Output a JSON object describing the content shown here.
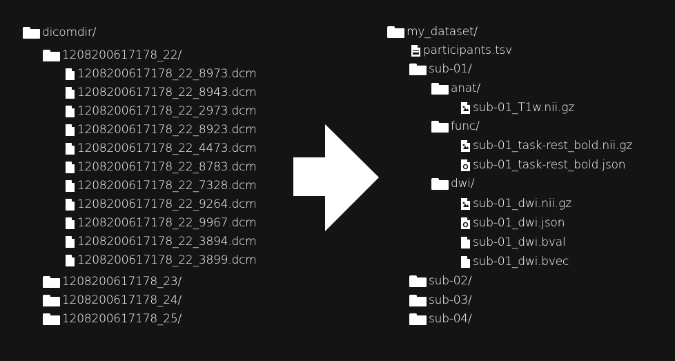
{
  "left_tree": [
    {
      "type": "folder",
      "label": "dicomdir/",
      "depth": 0
    },
    {
      "type": "folder",
      "label": "1208200617178_22/",
      "depth": 1
    },
    {
      "type": "file",
      "icon": "file-icon",
      "label": "1208200617178_22_8973.dcm",
      "depth": 2
    },
    {
      "type": "file",
      "icon": "file-icon",
      "label": "1208200617178_22_8943.dcm",
      "depth": 2
    },
    {
      "type": "file",
      "icon": "file-icon",
      "label": "1208200617178_22_2973.dcm",
      "depth": 2
    },
    {
      "type": "file",
      "icon": "file-icon",
      "label": "1208200617178_22_8923.dcm",
      "depth": 2
    },
    {
      "type": "file",
      "icon": "file-icon",
      "label": "1208200617178_22_4473.dcm",
      "depth": 2
    },
    {
      "type": "file",
      "icon": "file-icon",
      "label": "1208200617178_22_8783.dcm",
      "depth": 2
    },
    {
      "type": "file",
      "icon": "file-icon",
      "label": "1208200617178_22_7328.dcm",
      "depth": 2
    },
    {
      "type": "file",
      "icon": "file-icon",
      "label": "1208200617178_22_9264.dcm",
      "depth": 2
    },
    {
      "type": "file",
      "icon": "file-icon",
      "label": "1208200617178_22_9967.dcm",
      "depth": 2
    },
    {
      "type": "file",
      "icon": "file-icon",
      "label": "1208200617178_22_3894.dcm",
      "depth": 2
    },
    {
      "type": "file",
      "icon": "file-icon",
      "label": "1208200617178_22_3899.dcm",
      "depth": 2
    },
    {
      "type": "folder",
      "label": "1208200617178_23/",
      "depth": 1
    },
    {
      "type": "folder",
      "label": "1208200617178_24/",
      "depth": 1
    },
    {
      "type": "folder",
      "label": "1208200617178_25/",
      "depth": 1
    }
  ],
  "right_tree": [
    {
      "type": "folder",
      "label": "my_dataset/",
      "depth": 0
    },
    {
      "type": "file",
      "icon": "tsv-file-icon",
      "label": "participants.tsv",
      "depth": 1
    },
    {
      "type": "folder",
      "label": "sub-01/",
      "depth": 1
    },
    {
      "type": "folder",
      "label": "anat/",
      "depth": 2
    },
    {
      "type": "file",
      "icon": "image-file-icon",
      "label": "sub-01_T1w.nii.gz",
      "depth": 3
    },
    {
      "type": "folder",
      "label": "func/",
      "depth": 2
    },
    {
      "type": "file",
      "icon": "image-file-icon",
      "label": "sub-01_task-rest_bold.nii.gz",
      "depth": 3
    },
    {
      "type": "file",
      "icon": "json-file-icon",
      "label": "sub-01_task-rest_bold.json",
      "depth": 3
    },
    {
      "type": "folder",
      "label": "dwi/",
      "depth": 2
    },
    {
      "type": "file",
      "icon": "image-file-icon",
      "label": "sub-01_dwi.nii.gz",
      "depth": 3
    },
    {
      "type": "file",
      "icon": "json-file-icon",
      "label": "sub-01_dwi.json",
      "depth": 3
    },
    {
      "type": "file",
      "icon": "file-icon",
      "label": "sub-01_dwi.bval",
      "depth": 3
    },
    {
      "type": "file",
      "icon": "file-icon",
      "label": "sub-01_dwi.bvec",
      "depth": 3
    },
    {
      "type": "folder",
      "label": "sub-02/",
      "depth": 1
    },
    {
      "type": "folder",
      "label": "sub-03/",
      "depth": 1
    },
    {
      "type": "folder",
      "label": "sub-04/",
      "depth": 1
    }
  ],
  "colors": {
    "background": "#141414",
    "foreground": "#ffffff"
  },
  "arrow_icon": "right-arrow-icon"
}
